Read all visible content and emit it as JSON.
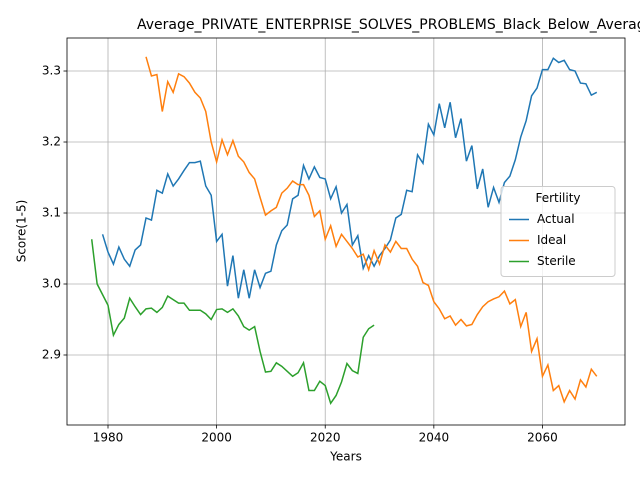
{
  "chart_data": {
    "type": "line",
    "title": "Average_PRIVATE_ENTERPRISE_SOLVES_PROBLEMS_Black_Below_Average_",
    "x_label": "Years",
    "y_label": "Score(1-5)",
    "xlim": [
      1972.45,
      2075.2
    ],
    "ylim": [
      2.8014,
      3.3465
    ],
    "xticks": [
      1980,
      2000,
      2020,
      2040,
      2060
    ],
    "yticks": [
      2.9,
      {
        "value": 3,
        "label": "3.0"
      },
      3.1,
      3.2,
      3.3
    ],
    "grid": true,
    "legend_title": "Fertility",
    "legend_position": "center right",
    "series": [
      {
        "name": "Actual",
        "color": "#1f77b4",
        "x": [
          1979,
          1980,
          1981,
          1982,
          1983,
          1984,
          1985,
          1986,
          1987,
          1988,
          1989,
          1990,
          1991,
          1992,
          1993,
          1994,
          1995,
          1996,
          1997,
          1998,
          1999,
          2000,
          2001,
          2002,
          2003,
          2004,
          2005,
          2006,
          2007,
          2008,
          2009,
          2010,
          2011,
          2012,
          2013,
          2014,
          2015,
          2016,
          2017,
          2018,
          2019,
          2020,
          2021,
          2022,
          2023,
          2024,
          2025,
          2026,
          2027,
          2028,
          2029,
          2030,
          2031,
          2032,
          2033,
          2034,
          2035,
          2036,
          2037,
          2038,
          2039,
          2040,
          2041,
          2042,
          2043,
          2044,
          2045,
          2046,
          2047,
          2048,
          2049,
          2050,
          2051,
          2052,
          2053,
          2054,
          2055,
          2056,
          2057,
          2058,
          2059,
          2060,
          2061,
          2062,
          2063,
          2064,
          2065,
          2066,
          2067,
          2068,
          2069,
          2070
        ],
        "values": [
          3.07,
          3.045,
          3.028,
          3.052,
          3.035,
          3.025,
          3.048,
          3.055,
          3.093,
          3.09,
          3.132,
          3.128,
          3.155,
          3.138,
          3.148,
          3.16,
          3.171,
          3.171,
          3.173,
          3.138,
          3.125,
          3.06,
          3.07,
          2.997,
          3.04,
          2.98,
          3.02,
          2.98,
          3.02,
          2.995,
          3.015,
          3.018,
          3.055,
          3.075,
          3.083,
          3.12,
          3.125,
          3.167,
          3.148,
          3.165,
          3.15,
          3.148,
          3.12,
          3.137,
          3.1,
          3.112,
          3.055,
          3.068,
          3.022,
          3.04,
          3.025,
          3.04,
          3.05,
          3.062,
          3.093,
          3.098,
          3.132,
          3.13,
          3.182,
          3.17,
          3.225,
          3.21,
          3.254,
          3.22,
          3.256,
          3.206,
          3.233,
          3.173,
          3.195,
          3.134,
          3.162,
          3.108,
          3.136,
          3.115,
          3.143,
          3.152,
          3.175,
          3.207,
          3.23,
          3.265,
          3.276,
          3.302,
          3.302,
          3.318,
          3.312,
          3.315,
          3.302,
          3.3,
          3.283,
          3.282,
          3.266,
          3.27
        ]
      },
      {
        "name": "Ideal",
        "color": "#ff7f0e",
        "x": [
          1987,
          1988,
          1989,
          1990,
          1991,
          1992,
          1993,
          1994,
          1995,
          1996,
          1997,
          1998,
          1999,
          2000,
          2001,
          2002,
          2003,
          2004,
          2005,
          2006,
          2007,
          2008,
          2009,
          2010,
          2011,
          2012,
          2013,
          2014,
          2015,
          2016,
          2017,
          2018,
          2019,
          2020,
          2021,
          2022,
          2023,
          2024,
          2025,
          2026,
          2027,
          2028,
          2029,
          2030,
          2031,
          2032,
          2033,
          2034,
          2035,
          2036,
          2037,
          2038,
          2039,
          2040,
          2041,
          2042,
          2043,
          2044,
          2045,
          2046,
          2047,
          2048,
          2049,
          2050,
          2051,
          2052,
          2053,
          2054,
          2055,
          2056,
          2057,
          2058,
          2059,
          2060,
          2061,
          2062,
          2063,
          2064,
          2065,
          2066,
          2067,
          2068,
          2069,
          2070
        ],
        "values": [
          3.32,
          3.293,
          3.295,
          3.243,
          3.285,
          3.27,
          3.296,
          3.292,
          3.283,
          3.27,
          3.262,
          3.243,
          3.2,
          3.172,
          3.203,
          3.182,
          3.202,
          3.18,
          3.172,
          3.157,
          3.148,
          3.122,
          3.097,
          3.103,
          3.108,
          3.128,
          3.135,
          3.145,
          3.14,
          3.14,
          3.125,
          3.095,
          3.103,
          3.063,
          3.082,
          3.053,
          3.07,
          3.06,
          3.05,
          3.038,
          3.042,
          3.02,
          3.047,
          3.028,
          3.055,
          3.045,
          3.06,
          3.05,
          3.05,
          3.035,
          3.025,
          3.002,
          2.998,
          2.975,
          2.965,
          2.951,
          2.955,
          2.942,
          2.95,
          2.941,
          2.943,
          2.957,
          2.968,
          2.975,
          2.979,
          2.982,
          2.99,
          2.972,
          2.978,
          2.94,
          2.96,
          2.905,
          2.923,
          2.87,
          2.886,
          2.85,
          2.857,
          2.834,
          2.85,
          2.838,
          2.865,
          2.855,
          2.88,
          2.87
        ]
      },
      {
        "name": "Sterile",
        "color": "#2ca02c",
        "x": [
          1977,
          1978,
          1979,
          1980,
          1981,
          1982,
          1983,
          1984,
          1985,
          1986,
          1987,
          1988,
          1989,
          1990,
          1991,
          1992,
          1993,
          1994,
          1995,
          1996,
          1997,
          1998,
          1999,
          2000,
          2001,
          2002,
          2003,
          2004,
          2005,
          2006,
          2007,
          2008,
          2009,
          2010,
          2011,
          2012,
          2013,
          2014,
          2015,
          2016,
          2017,
          2018,
          2019,
          2020,
          2021,
          2022,
          2023,
          2024,
          2025,
          2026,
          2027,
          2028,
          2029
        ],
        "values": [
          3.063,
          3.0,
          2.985,
          2.97,
          2.928,
          2.943,
          2.952,
          2.98,
          2.968,
          2.957,
          2.965,
          2.966,
          2.96,
          2.967,
          2.983,
          2.978,
          2.973,
          2.973,
          2.963,
          2.963,
          2.963,
          2.958,
          2.95,
          2.964,
          2.965,
          2.96,
          2.965,
          2.955,
          2.94,
          2.935,
          2.94,
          2.905,
          2.876,
          2.877,
          2.889,
          2.884,
          2.877,
          2.87,
          2.875,
          2.889,
          2.85,
          2.85,
          2.863,
          2.857,
          2.832,
          2.843,
          2.862,
          2.888,
          2.878,
          2.874,
          2.925,
          2.937,
          2.942
        ]
      }
    ]
  }
}
